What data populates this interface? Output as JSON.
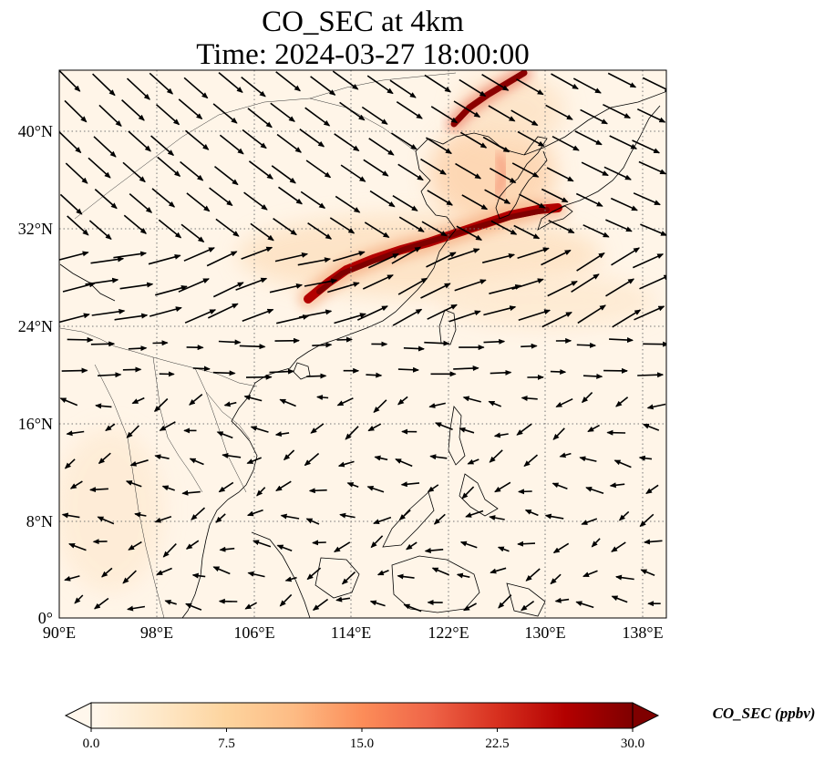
{
  "title": {
    "line1": "CO_SEC at 4km",
    "line2": "Time: 2024-03-27 18:00:00"
  },
  "map": {
    "projection": "PlateCarree",
    "lon_range": [
      90,
      140
    ],
    "lat_range": [
      0,
      45
    ],
    "gridlines": "dotted",
    "lon_ticks": [
      {
        "value": 90,
        "label": "90°E"
      },
      {
        "value": 98,
        "label": "98°E"
      },
      {
        "value": 106,
        "label": "106°E"
      },
      {
        "value": 114,
        "label": "114°E"
      },
      {
        "value": 122,
        "label": "122°E"
      },
      {
        "value": 130,
        "label": "130°E"
      },
      {
        "value": 138,
        "label": "138°E"
      }
    ],
    "lat_ticks": [
      {
        "value": 0,
        "label": "0°"
      },
      {
        "value": 8,
        "label": "8°N"
      },
      {
        "value": 16,
        "label": "16°N"
      },
      {
        "value": 24,
        "label": "24°N"
      },
      {
        "value": 32,
        "label": "32°N"
      },
      {
        "value": 40,
        "label": "40°N"
      }
    ],
    "overlays": [
      "coastlines",
      "country borders",
      "wind vectors"
    ]
  },
  "colorbar": {
    "label": "CO_SEC (ppbv)",
    "colormap": "OrRd",
    "range": [
      0,
      30
    ],
    "extend": "both",
    "ticks": [
      "0.0",
      "7.5",
      "15.0",
      "22.5",
      "30.0"
    ],
    "colors": [
      "#fff7ec",
      "#fee8c8",
      "#fdd49e",
      "#fdbb84",
      "#fc8d59",
      "#ef6548",
      "#d7301f",
      "#b30000",
      "#7f0000"
    ]
  },
  "plume": {
    "description_color": "#7f0000",
    "path_lonlat": [
      [
        110.5,
        26.5
      ],
      [
        113,
        27.5
      ],
      [
        116,
        29.5
      ],
      [
        120,
        31
      ],
      [
        124,
        32.5
      ],
      [
        128,
        34.5
      ],
      [
        130,
        34.8
      ]
    ],
    "north_path_lonlat": [
      [
        120,
        40.5
      ],
      [
        123,
        42.5
      ],
      [
        126,
        44
      ],
      [
        128,
        45
      ]
    ]
  }
}
